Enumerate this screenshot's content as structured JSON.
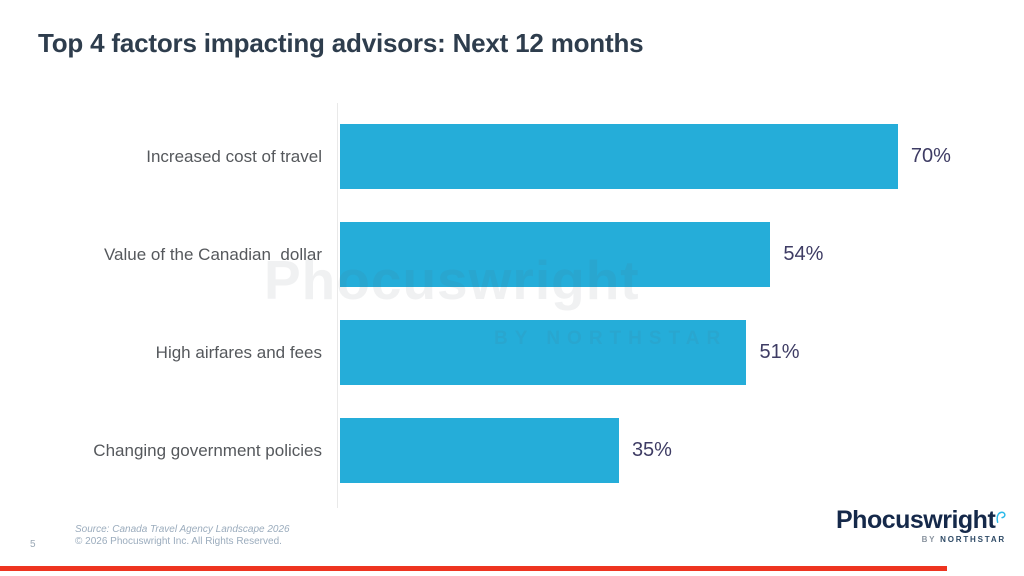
{
  "title": "Top 4 factors impacting advisors: Next 12 months",
  "chart_data": {
    "type": "bar",
    "orientation": "horizontal",
    "title": "Top 4 factors impacting advisors: Next 12 months",
    "categories": [
      "Increased cost of travel",
      "Value of the Canadian  dollar",
      "High airfares and fees",
      "Changing government policies"
    ],
    "values": [
      70,
      54,
      51,
      35
    ],
    "value_labels": [
      "70%",
      "54%",
      "51%",
      "35%"
    ],
    "xlim": [
      0,
      100
    ],
    "grid": false,
    "legend": "none",
    "bar_color": "#25ADD9",
    "value_label_color": "#3E3C64"
  },
  "watermark": {
    "name": "Phocuswright",
    "tagline": "BY NORTHSTAR"
  },
  "footer": {
    "page_number": "5",
    "source_line1": "Source: Canada Travel Agency Landscape 2026",
    "source_line2": "© 2026 Phocuswright Inc. All Rights Reserved."
  },
  "logo": {
    "name": "Phocuswright",
    "tagline_by": "BY",
    "tagline_name": "NORTHSTAR",
    "mark_icon": "speech-bubble-question-icon"
  },
  "colors": {
    "bar_cyan": "#25ADD9",
    "title_slate": "#2E3D4D",
    "label_gray": "#55585C",
    "value_navy": "#3E3C64",
    "accent_red": "#EE3420",
    "logo_navy": "#15294A",
    "logo_cyan": "#2BB9E9"
  }
}
